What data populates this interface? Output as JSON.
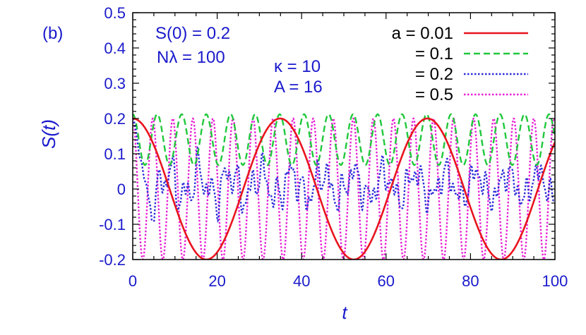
{
  "chart_data": {
    "type": "line",
    "panel_label": "(b)",
    "xlabel": "t",
    "ylabel": "S(t)",
    "xlim": [
      0,
      100
    ],
    "ylim": [
      -0.2,
      0.5
    ],
    "x_ticks": [
      0,
      20,
      40,
      60,
      80,
      100
    ],
    "y_ticks": [
      -0.2,
      -0.1,
      0,
      0.1,
      0.2,
      0.3,
      0.4,
      0.5
    ],
    "x_tick_labels": [
      "0",
      "20",
      "40",
      "60",
      "80",
      "100"
    ],
    "y_tick_labels": [
      "-0.2",
      "-0.1",
      "0",
      "0.1",
      "0.2",
      "0.3",
      "0.4",
      "0.5"
    ],
    "annotations": {
      "s0": "S(0) = 0.2",
      "nlambda": "Nλ = 100",
      "kappa": "κ = 10",
      "amp": "A = 16"
    },
    "legend_position": "top-right",
    "series": [
      {
        "label": "a = 0.01",
        "color": "#e8141e",
        "dash": "solid",
        "period": 34.9,
        "min": -0.2,
        "max": 0.2
      },
      {
        "label": "= 0.1",
        "color": "#20c83c",
        "dash": "dashed",
        "period": 5.8,
        "min": 0.068,
        "max": 0.212
      },
      {
        "label": "= 0.2",
        "color": "#2b2bd8",
        "dash": "dotted",
        "irregular": true,
        "range": [
          -0.09,
          0.2
        ]
      },
      {
        "label": "= 0.5",
        "color": "#e820d6",
        "dash": "dotted",
        "period": 4.75,
        "min": -0.2,
        "max": 0.2
      }
    ]
  }
}
